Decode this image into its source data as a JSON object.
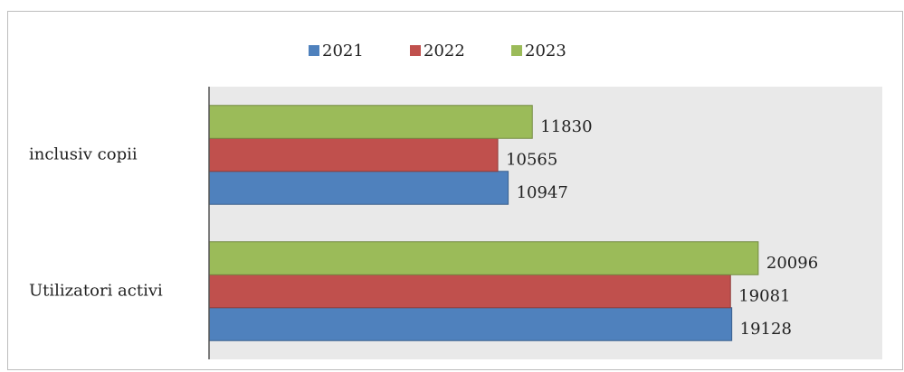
{
  "chart_data": {
    "type": "hbar",
    "categories": [
      "inclusiv copii",
      "Utilizatori activi"
    ],
    "series": [
      {
        "name": "2021",
        "color": "#4f81bd",
        "values": [
          10947,
          19128
        ]
      },
      {
        "name": "2022",
        "color": "#c0504d",
        "values": [
          10565,
          19081
        ]
      },
      {
        "name": "2023",
        "color": "#9bbb59",
        "values": [
          11830,
          20096
        ]
      }
    ],
    "xlim": [
      0,
      25000
    ],
    "legend": "top"
  }
}
